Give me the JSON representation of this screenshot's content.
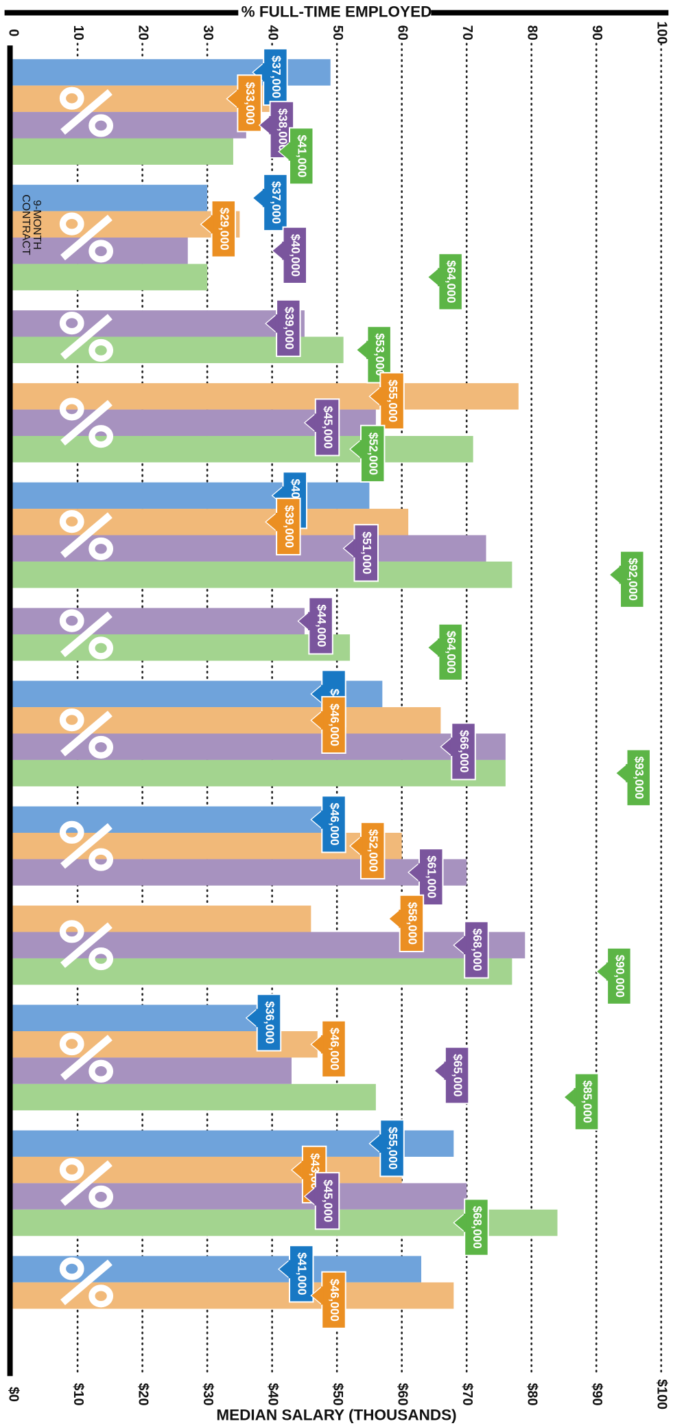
{
  "chart_data": {
    "type": "bar",
    "orientation": "horizontal",
    "title": "% FULL-TIME EMPLOYED",
    "x2_title": "MEDIAN SALARY (THOUSANDS)",
    "categories": [
      null,
      null,
      null,
      null,
      null,
      null,
      null,
      null,
      null,
      null,
      null,
      null
    ],
    "xlim": [
      0,
      100
    ],
    "xticks": [
      0,
      10,
      20,
      30,
      40,
      50,
      60,
      70,
      80,
      90,
      100
    ],
    "x2lim": [
      0,
      100
    ],
    "x2ticks": [
      {
        "value": 0,
        "label": "$0"
      },
      {
        "value": 10,
        "label": "$10"
      },
      {
        "value": 20,
        "label": "$20"
      },
      {
        "value": 30,
        "label": "$30"
      },
      {
        "value": 40,
        "label": "$40"
      },
      {
        "value": 50,
        "label": "$50"
      },
      {
        "value": 60,
        "label": "$60"
      },
      {
        "value": 70,
        "label": "$70"
      },
      {
        "value": 80,
        "label": "$80"
      },
      {
        "value": 90,
        "label": "$90"
      },
      {
        "value": 100,
        "label": "$100"
      }
    ],
    "grid": true,
    "annotation": {
      "group": 1,
      "lines": [
        "9-MONTH",
        "CONTRACT"
      ]
    },
    "series": [
      {
        "color": "#6fa3db",
        "flag_color": "#1878c4",
        "values": [
          49,
          30,
          null,
          null,
          55,
          null,
          57,
          50,
          null,
          40,
          68,
          63
        ],
        "salaries": [
          37,
          37,
          null,
          null,
          40,
          null,
          46,
          46,
          null,
          36,
          55,
          41
        ],
        "salary_labels": [
          "$37,000",
          "$37,000",
          null,
          null,
          "$40,000",
          null,
          "$46",
          "$46,000",
          null,
          "$36,000",
          "$55,000",
          "$41,000"
        ]
      },
      {
        "color": "#f1b979",
        "flag_color": "#eb8f22",
        "values": [
          40,
          35,
          null,
          78,
          61,
          null,
          66,
          60,
          46,
          47,
          60,
          68
        ],
        "salaries": [
          33,
          29,
          null,
          55,
          39,
          null,
          46,
          52,
          58,
          46,
          43,
          46
        ],
        "salary_labels": [
          "$33,000",
          "$29,000",
          null,
          "$55,000",
          "$39,000",
          null,
          "$46,000",
          "$52,000",
          "$58,000",
          "$46,000",
          "$43,000",
          "$46,000"
        ]
      },
      {
        "color": "#a792bf",
        "flag_color": "#7a559d",
        "values": [
          36,
          27,
          45,
          56,
          73,
          45,
          76,
          70,
          79,
          43,
          70,
          null
        ],
        "salaries": [
          38,
          40,
          39,
          45,
          51,
          44,
          66,
          61,
          68,
          65,
          45,
          null
        ],
        "salary_labels": [
          "$38,000",
          "$40,000",
          "$39,000",
          "$45,000",
          "$51,000",
          "$44,000",
          "$66,000",
          "$61,000",
          "$68,000",
          "$65,000",
          "$45,000",
          null
        ]
      },
      {
        "color": "#a3d48f",
        "flag_color": "#5cb546",
        "values": [
          34,
          30,
          51,
          71,
          77,
          52,
          76,
          null,
          77,
          56,
          84,
          null
        ],
        "salaries": [
          41,
          64,
          53,
          52,
          92,
          64,
          93,
          null,
          90,
          85,
          68,
          null
        ],
        "salary_labels": [
          "$41,000",
          "$64,000",
          "$53,000",
          "$52,000",
          "$92,000",
          "$64,000",
          "$93,000",
          null,
          "$90,000",
          "$85,000",
          "$68,000",
          null
        ]
      }
    ]
  }
}
